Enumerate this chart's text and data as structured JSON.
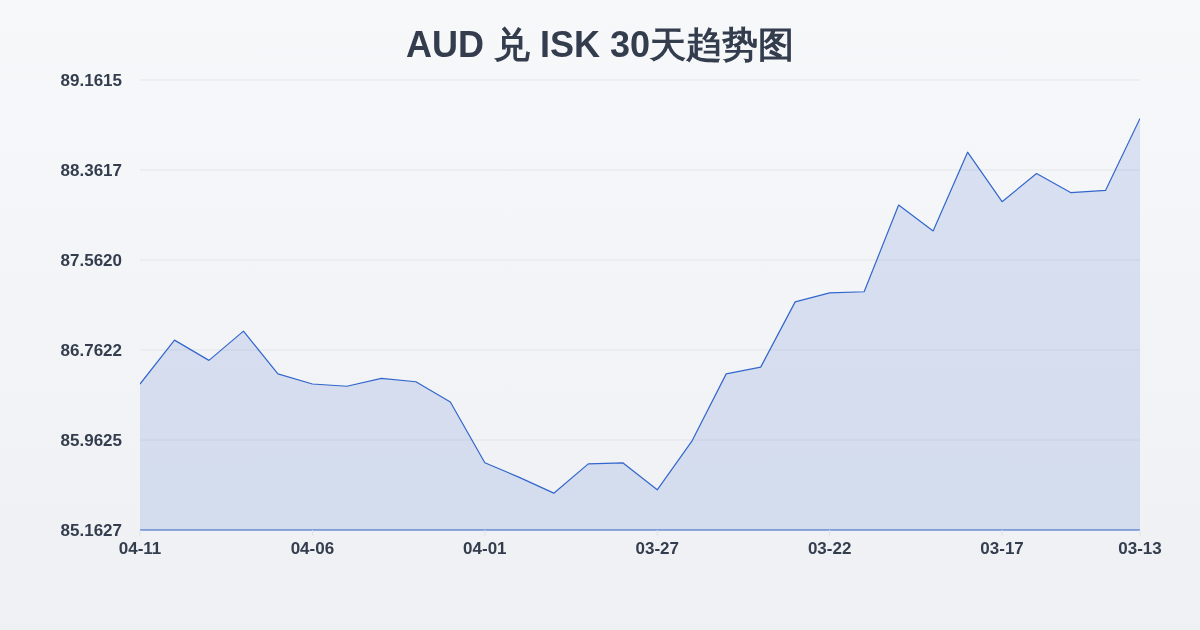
{
  "chart_data": {
    "type": "area",
    "title": "AUD 兑 ISK 30天趋势图",
    "categories": [
      "04-11",
      null,
      null,
      null,
      null,
      "04-06",
      null,
      null,
      null,
      null,
      "04-01",
      null,
      null,
      null,
      null,
      "03-27",
      null,
      null,
      null,
      null,
      "03-22",
      null,
      null,
      null,
      null,
      "03-17",
      null,
      null,
      null,
      "03-13"
    ],
    "values": [
      86.46,
      86.85,
      86.67,
      86.93,
      86.55,
      86.46,
      86.44,
      86.51,
      86.48,
      86.3,
      85.76,
      85.63,
      85.49,
      85.75,
      85.76,
      85.52,
      85.95,
      86.55,
      86.61,
      87.19,
      87.27,
      87.28,
      88.05,
      87.82,
      88.52,
      88.08,
      88.33,
      88.16,
      88.18,
      88.82
    ],
    "color": "#3366cc",
    "ylim": [
      85.1627,
      89.1615
    ],
    "yticks": [
      85.1627,
      85.9625,
      86.7622,
      {
        "value": 87.562,
        "label": "87.5620"
      },
      88.3617,
      89.1615
    ],
    "grid": "y"
  }
}
